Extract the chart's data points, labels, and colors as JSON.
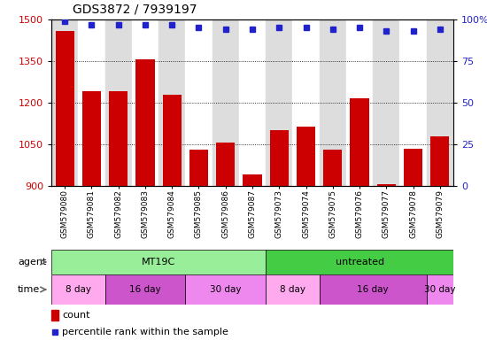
{
  "title": "GDS3872 / 7939197",
  "samples": [
    "GSM579080",
    "GSM579081",
    "GSM579082",
    "GSM579083",
    "GSM579084",
    "GSM579085",
    "GSM579086",
    "GSM579087",
    "GSM579073",
    "GSM579074",
    "GSM579075",
    "GSM579076",
    "GSM579077",
    "GSM579078",
    "GSM579079"
  ],
  "counts": [
    1460,
    1240,
    1240,
    1355,
    1230,
    1030,
    1055,
    940,
    1100,
    1115,
    1030,
    1215,
    905,
    1035,
    1080
  ],
  "percentiles": [
    99,
    97,
    97,
    97,
    97,
    95,
    94,
    94,
    95,
    95,
    94,
    95,
    93,
    93,
    94
  ],
  "bar_color": "#cc0000",
  "dot_color": "#2222cc",
  "ymin": 900,
  "ymax": 1500,
  "y_ticks": [
    900,
    1050,
    1200,
    1350,
    1500
  ],
  "y2min": 0,
  "y2max": 100,
  "y2_ticks": [
    0,
    25,
    50,
    75,
    100
  ],
  "agent_groups": [
    {
      "label": "MT19C",
      "start": 0,
      "end": 7,
      "color": "#99ee99"
    },
    {
      "label": "untreated",
      "start": 8,
      "end": 14,
      "color": "#44cc44"
    }
  ],
  "time_groups": [
    {
      "label": "8 day",
      "start": 0,
      "end": 1,
      "color": "#ffaaee"
    },
    {
      "label": "16 day",
      "start": 2,
      "end": 4,
      "color": "#cc55cc"
    },
    {
      "label": "30 day",
      "start": 5,
      "end": 7,
      "color": "#ee88ee"
    },
    {
      "label": "8 day",
      "start": 8,
      "end": 9,
      "color": "#ffaaee"
    },
    {
      "label": "16 day",
      "start": 10,
      "end": 13,
      "color": "#cc55cc"
    },
    {
      "label": "30 day",
      "start": 14,
      "end": 14,
      "color": "#ee88ee"
    }
  ],
  "col_bg_even": "#dddddd",
  "col_bg_odd": "#ffffff",
  "legend_count_label": "count",
  "legend_pct_label": "percentile rank within the sample",
  "agent_label": "agent",
  "time_label": "time"
}
